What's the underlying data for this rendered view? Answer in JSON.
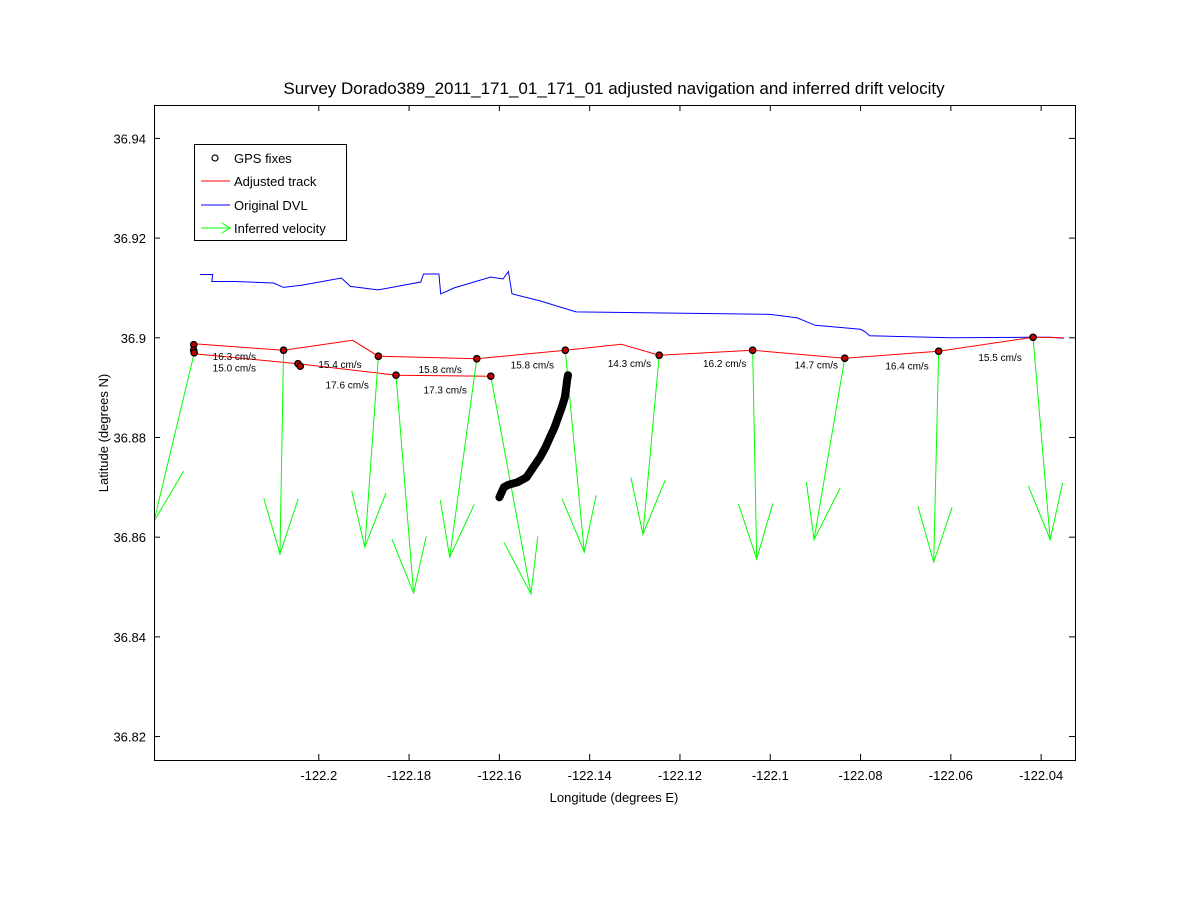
{
  "chart_data": {
    "type": "scatter",
    "title": "Survey Dorado389_2011_171_01_171_01 adjusted navigation and inferred drift velocity",
    "xlabel": "Longitude (degrees E)",
    "ylabel": "Latitude (degrees N)",
    "xlim": [
      -122.2365,
      -122.0325
    ],
    "ylim": [
      36.8153,
      36.9467
    ],
    "xticks": [
      -122.2,
      -122.18,
      -122.16,
      -122.14,
      -122.12,
      -122.1,
      -122.08,
      -122.06,
      -122.04
    ],
    "yticks": [
      36.82,
      36.84,
      36.86,
      36.88,
      36.9,
      36.92,
      36.94
    ],
    "xtick_labels": [
      "-122.2",
      "-122.18",
      "-122.16",
      "-122.14",
      "-122.12",
      "-122.1",
      "-122.08",
      "-122.06",
      "-122.04"
    ],
    "ytick_labels": [
      "36.82",
      "36.84",
      "36.86",
      "36.88",
      "36.9",
      "36.92",
      "36.94"
    ],
    "grid": false,
    "legend_position": "top-left",
    "legend": [
      {
        "label": "GPS fixes",
        "color": "#000000",
        "marker": "circle"
      },
      {
        "label": "Adjusted track",
        "color": "#ff0000",
        "marker": "line"
      },
      {
        "label": "Original DVL",
        "color": "#0000ff",
        "marker": "line"
      },
      {
        "label": "Inferred velocity",
        "color": "#00ff00",
        "marker": "arrow"
      }
    ],
    "series": [
      {
        "name": "GPS fixes",
        "color": "#000000",
        "points": [
          [
            -122.2277,
            36.8986
          ],
          [
            -122.2277,
            36.8975
          ],
          [
            -122.2276,
            36.897
          ],
          [
            -122.2078,
            36.8975
          ],
          [
            -122.2046,
            36.8948
          ],
          [
            -122.2041,
            36.8943
          ],
          [
            -122.1868,
            36.8963
          ],
          [
            -122.1829,
            36.8925
          ],
          [
            -122.165,
            36.8958
          ],
          [
            -122.1619,
            36.8923
          ],
          [
            -122.1454,
            36.8975
          ],
          [
            -122.1246,
            36.8965
          ],
          [
            -122.1039,
            36.8975
          ],
          [
            -122.0835,
            36.8959
          ],
          [
            -122.0627,
            36.8973
          ],
          [
            -122.0418,
            36.9001
          ]
        ]
      },
      {
        "name": "Adjusted track",
        "color": "#ff0000",
        "points": [
          [
            -122.2276,
            36.8988
          ],
          [
            -122.2078,
            36.8975
          ],
          [
            -122.1925,
            36.8995
          ],
          [
            -122.1868,
            36.8963
          ],
          [
            -122.165,
            36.8958
          ],
          [
            -122.1454,
            36.8975
          ],
          [
            -122.133,
            36.8987
          ],
          [
            -122.1246,
            36.8965
          ],
          [
            -122.1039,
            36.8975
          ],
          [
            -122.0835,
            36.8959
          ],
          [
            -122.0627,
            36.8973
          ],
          [
            -122.0418,
            36.9001
          ],
          [
            -122.035,
            36.9
          ],
          [
            -122.2276,
            36.8968
          ],
          [
            -122.2046,
            36.8948
          ],
          [
            -122.1829,
            36.8925
          ],
          [
            -122.1619,
            36.8923
          ]
        ]
      },
      {
        "name": "Original DVL",
        "color": "#0000ff",
        "points": [
          [
            -122.2263,
            36.9127
          ],
          [
            -122.2235,
            36.9127
          ],
          [
            -122.2237,
            36.9113
          ],
          [
            -122.2186,
            36.9113
          ],
          [
            -122.21,
            36.911
          ],
          [
            -122.2078,
            36.9101
          ],
          [
            -122.2035,
            36.9106
          ],
          [
            -122.195,
            36.912
          ],
          [
            -122.193,
            36.9103
          ],
          [
            -122.1869,
            36.9096
          ],
          [
            -122.1774,
            36.9112
          ],
          [
            -122.1768,
            36.9128
          ],
          [
            -122.1734,
            36.9128
          ],
          [
            -122.173,
            36.9088
          ],
          [
            -122.17,
            36.91
          ],
          [
            -122.1619,
            36.9122
          ],
          [
            -122.1592,
            36.9118
          ],
          [
            -122.158,
            36.9133
          ],
          [
            -122.1572,
            36.9088
          ],
          [
            -122.151,
            36.9074
          ],
          [
            -122.143,
            36.9052
          ],
          [
            -122.1,
            36.9047
          ],
          [
            -122.094,
            36.904
          ],
          [
            -122.093,
            36.9036
          ],
          [
            -122.09,
            36.9025
          ],
          [
            -122.08,
            36.9017
          ],
          [
            -122.079,
            36.9012
          ],
          [
            -122.078,
            36.9004
          ],
          [
            -122.06,
            36.9
          ],
          [
            -122.043,
            36.9001
          ],
          [
            -122.038,
            36.9001
          ],
          [
            -122.035,
            36.8999
          ]
        ]
      },
      {
        "name": "Inferred velocity",
        "color": "#00ff00",
        "arrows": [
          {
            "x": -122.2276,
            "y": 36.8969,
            "x2": -122.2365,
            "y2": 36.8632,
            "label": "16.3 cm/s"
          },
          {
            "x": -122.2078,
            "y": 36.8975,
            "x2": -122.2086,
            "y2": 36.8566,
            "label": "15.0 cm/s"
          },
          {
            "x": -122.1868,
            "y": 36.8963,
            "x2": -122.1898,
            "y2": 36.858,
            "label": "15.4 cm/s"
          },
          {
            "x": -122.1829,
            "y": 36.8925,
            "x2": -122.179,
            "y2": 36.8488,
            "label": "17.6 cm/s"
          },
          {
            "x": -122.165,
            "y": 36.8958,
            "x2": -122.171,
            "y2": 36.856,
            "label": "15.8 cm/s"
          },
          {
            "x": -122.1619,
            "y": 36.8923,
            "x2": -122.153,
            "y2": 36.8486,
            "label": "17.3 cm/s"
          },
          {
            "x": -122.1454,
            "y": 36.8975,
            "x2": -122.1412,
            "y2": 36.857,
            "label": "15.8 cm/s"
          },
          {
            "x": -122.1246,
            "y": 36.8965,
            "x2": -122.1282,
            "y2": 36.8606,
            "label": "14.3 cm/s"
          },
          {
            "x": -122.1039,
            "y": 36.8975,
            "x2": -122.103,
            "y2": 36.8556,
            "label": "16.2 cm/s"
          },
          {
            "x": -122.0835,
            "y": 36.8959,
            "x2": -122.0903,
            "y2": 36.8595,
            "label": "14.7 cm/s"
          },
          {
            "x": -122.0627,
            "y": 36.8973,
            "x2": -122.0638,
            "y2": 36.855,
            "label": "16.4 cm/s"
          },
          {
            "x": -122.0418,
            "y": 36.9001,
            "x2": -122.038,
            "y2": 36.8595,
            "label": "15.5 cm/s"
          }
        ]
      },
      {
        "color": "#000000",
        "points": [
          [
            -122.16,
            36.868
          ],
          [
            -122.1595,
            36.869
          ],
          [
            -122.159,
            36.87
          ],
          [
            -122.158,
            36.8705
          ],
          [
            -122.156,
            36.871
          ],
          [
            -122.154,
            36.872
          ],
          [
            -122.1525,
            36.874
          ],
          [
            -122.151,
            36.876
          ],
          [
            -122.1498,
            36.878
          ],
          [
            -122.1488,
            36.88
          ],
          [
            -122.1478,
            36.882
          ],
          [
            -122.147,
            36.884
          ],
          [
            -122.1462,
            36.886
          ],
          [
            -122.1455,
            36.888
          ],
          [
            -122.1452,
            36.89
          ],
          [
            -122.145,
            36.8915
          ],
          [
            -122.1448,
            36.8925
          ]
        ]
      }
    ],
    "annotations": [
      {
        "text": "16.3 cm/s",
        "x": -122.2187,
        "y": 36.8955
      },
      {
        "text": "15.0 cm/s",
        "x": -122.2187,
        "y": 36.8932
      },
      {
        "text": "15.4 cm/s",
        "x": -122.1953,
        "y": 36.8939
      },
      {
        "text": "17.6 cm/s",
        "x": -122.1937,
        "y": 36.8898
      },
      {
        "text": "15.8 cm/s",
        "x": -122.1731,
        "y": 36.8929
      },
      {
        "text": "17.3 cm/s",
        "x": -122.172,
        "y": 36.8888
      },
      {
        "text": "15.8 cm/s",
        "x": -122.1527,
        "y": 36.8938
      },
      {
        "text": "14.3 cm/s",
        "x": -122.1312,
        "y": 36.8941
      },
      {
        "text": "16.2 cm/s",
        "x": -122.1101,
        "y": 36.8941
      },
      {
        "text": "14.7 cm/s",
        "x": -122.0898,
        "y": 36.8938
      },
      {
        "text": "16.4 cm/s",
        "x": -122.0697,
        "y": 36.8936
      },
      {
        "text": "15.5 cm/s",
        "x": -122.0491,
        "y": 36.8953
      }
    ]
  }
}
